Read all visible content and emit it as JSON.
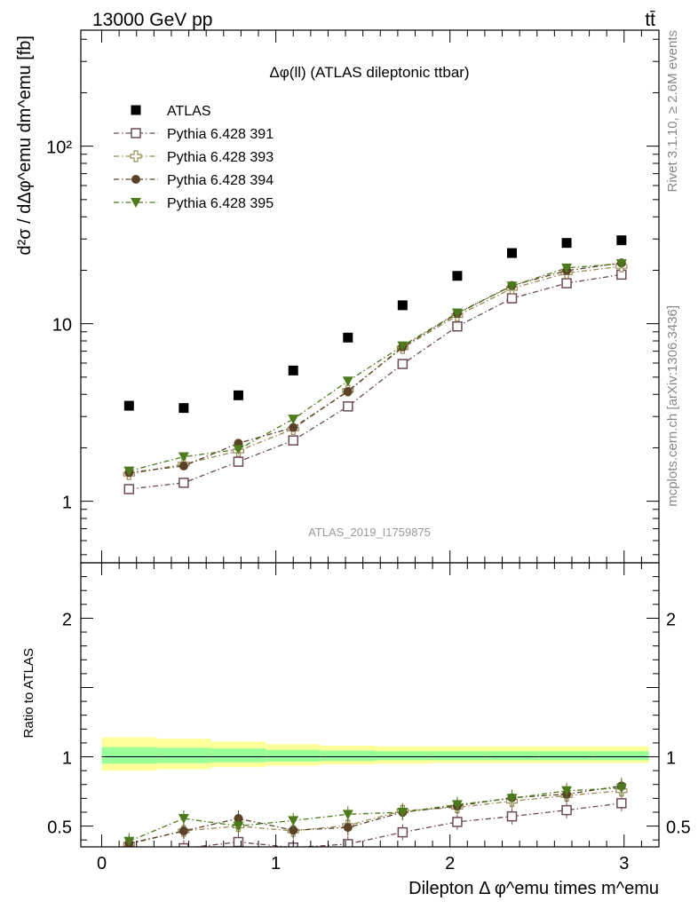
{
  "header": {
    "energy_label": "13000 GeV pp",
    "process_label": "tt̄",
    "rivet_label": "Rivet 3.1.10, ≥ 2.6M events",
    "mcplots_label": "mcplots.cern.ch [arXiv:1306.3436]",
    "analysis_label": "ATLAS_2019_I1759875"
  },
  "chart_data": [
    {
      "type": "scatter",
      "panel": "main",
      "title": "Δφ(ll) (ATLAS dileptonic ttbar)",
      "ylabel": "d²σ / dΔφ^emu dm^emu [fb]",
      "yscale": "log",
      "ylim": [
        0.45,
        450
      ],
      "xlim": [
        -0.12,
        3.2
      ],
      "y_tick_labels": [
        "1",
        "10",
        "10²"
      ],
      "x": [
        0.157,
        0.471,
        0.785,
        1.1,
        1.414,
        1.728,
        2.042,
        2.356,
        2.67,
        2.985
      ],
      "series": [
        {
          "name": "ATLAS",
          "color": "#000000",
          "marker": "square-filled",
          "values": [
            3.45,
            3.35,
            3.95,
            5.45,
            8.35,
            12.7,
            18.6,
            25.0,
            28.5,
            29.5
          ]
        },
        {
          "name": "Pythia 6.428 391",
          "color": "#6b4a5a",
          "marker": "square-open",
          "values": [
            1.17,
            1.27,
            1.67,
            2.2,
            3.42,
            5.93,
            9.65,
            13.9,
            16.9,
            18.9
          ]
        },
        {
          "name": "Pythia 6.428 393",
          "color": "#9a8a55",
          "marker": "cross-open",
          "values": [
            1.42,
            1.62,
            1.92,
            2.55,
            4.2,
            7.3,
            11.1,
            15.8,
            19.3,
            21.0
          ]
        },
        {
          "name": "Pythia 6.428 394",
          "color": "#5a4128",
          "marker": "circle-filled",
          "values": [
            1.45,
            1.58,
            2.12,
            2.6,
            4.15,
            7.4,
            11.4,
            16.4,
            19.9,
            22.0
          ]
        },
        {
          "name": "Pythia 6.428 395",
          "color": "#4c7a1c",
          "marker": "triangle-down-filled",
          "values": [
            1.48,
            1.78,
            1.96,
            2.9,
            4.75,
            7.5,
            11.5,
            16.3,
            20.6,
            21.8
          ]
        }
      ]
    },
    {
      "type": "scatter",
      "panel": "ratio",
      "ylabel": "Ratio to ATLAS",
      "xlabel": "Dilepton Δ φ^emu times m^emu",
      "ylim": [
        0.35,
        2.4
      ],
      "xlim": [
        -0.12,
        3.2
      ],
      "y_tick_labels": [
        "0.5",
        "1",
        "2"
      ],
      "x_tick_labels": [
        "0",
        "1",
        "2",
        "3"
      ],
      "x": [
        0.157,
        0.471,
        0.785,
        1.1,
        1.414,
        1.728,
        2.042,
        2.356,
        2.67,
        2.985
      ],
      "band_edges": [
        0.0,
        0.314,
        0.628,
        0.942,
        1.256,
        1.571,
        1.885,
        2.199,
        2.513,
        2.827,
        3.142
      ],
      "band_stat": [
        [
          0.95,
          1.07
        ],
        [
          0.955,
          1.065
        ],
        [
          0.96,
          1.06
        ],
        [
          0.965,
          1.05
        ],
        [
          0.97,
          1.045
        ],
        [
          0.975,
          1.04
        ],
        [
          0.975,
          1.04
        ],
        [
          0.975,
          1.04
        ],
        [
          0.975,
          1.04
        ],
        [
          0.975,
          1.04
        ]
      ],
      "band_total": [
        [
          0.9,
          1.14
        ],
        [
          0.91,
          1.13
        ],
        [
          0.925,
          1.11
        ],
        [
          0.935,
          1.09
        ],
        [
          0.945,
          1.08
        ],
        [
          0.95,
          1.075
        ],
        [
          0.955,
          1.075
        ],
        [
          0.955,
          1.075
        ],
        [
          0.955,
          1.075
        ],
        [
          0.955,
          1.075
        ]
      ],
      "series": [
        {
          "name": "Pythia 6.428 391",
          "color": "#6b4a5a",
          "marker": "square-open",
          "values": [
            0.34,
            0.34,
            0.385,
            0.345,
            0.37,
            0.455,
            0.53,
            0.57,
            0.615,
            0.665
          ]
        },
        {
          "name": "Pythia 6.428 393",
          "color": "#9a8a55",
          "marker": "cross-open",
          "values": [
            0.37,
            0.465,
            0.5,
            0.465,
            0.505,
            0.61,
            0.635,
            0.68,
            0.72,
            0.755
          ]
        },
        {
          "name": "Pythia 6.428 394",
          "color": "#5a4128",
          "marker": "circle-filled",
          "values": [
            0.375,
            0.465,
            0.555,
            0.47,
            0.49,
            0.6,
            0.645,
            0.705,
            0.73,
            0.79
          ]
        },
        {
          "name": "Pythia 6.428 395",
          "color": "#4c7a1c",
          "marker": "triangle-down-filled",
          "values": [
            0.39,
            0.555,
            0.5,
            0.54,
            0.585,
            0.6,
            0.655,
            0.7,
            0.755,
            0.775
          ]
        }
      ]
    }
  ],
  "colors": {
    "band_total": "#ffff99",
    "band_stat": "#99ff99",
    "analysis_label": "#999999"
  }
}
